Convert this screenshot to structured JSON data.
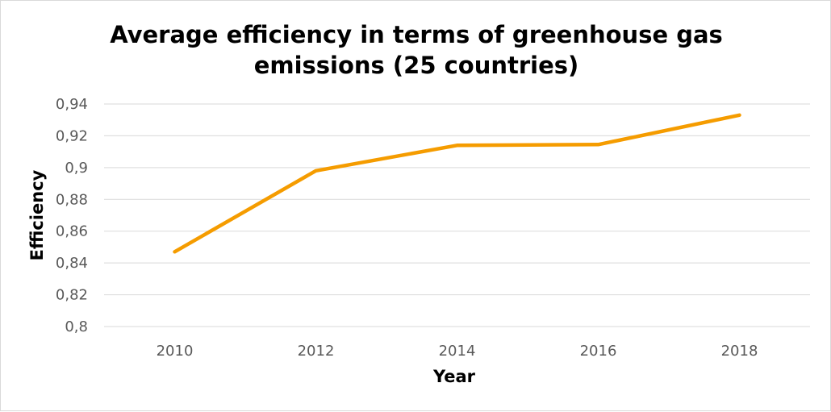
{
  "chart_data": {
    "type": "line",
    "title_lines": [
      "Average efficiency in terms of greenhouse gas",
      "emissions (25 countries)"
    ],
    "xlabel": "Year",
    "ylabel": "Efficiency",
    "x": [
      2010,
      2012,
      2014,
      2016,
      2018
    ],
    "x_tick_labels": [
      "2010",
      "2012",
      "2014",
      "2016",
      "2018"
    ],
    "y_tick_labels": [
      "0,94",
      "0,92",
      "0,9",
      "0,88",
      "0,86",
      "0,84",
      "0,82",
      "0,8"
    ],
    "y_ticks": [
      0.94,
      0.92,
      0.9,
      0.88,
      0.86,
      0.84,
      0.82,
      0.8
    ],
    "ylim": [
      0.8,
      0.94
    ],
    "grid": "horizontal",
    "legend": "none",
    "series": [
      {
        "values": [
          0.847,
          0.898,
          0.914,
          0.9145,
          0.933
        ],
        "color": "#f59c00"
      }
    ]
  }
}
